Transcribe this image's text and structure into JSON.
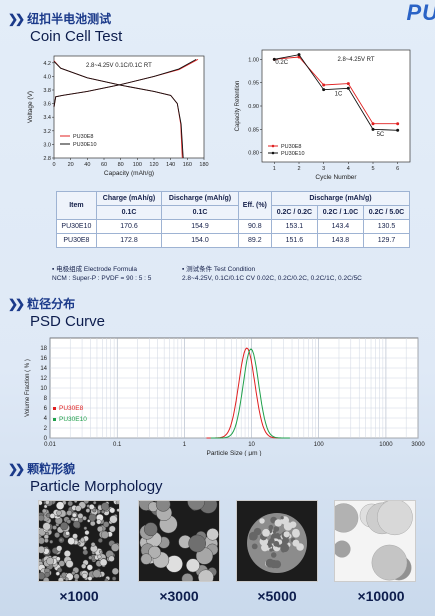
{
  "brand": "PU",
  "sections": {
    "coin": {
      "cn": "纽扣半电池测试",
      "en": "Coin Cell Test"
    },
    "psd": {
      "cn": "粒径分布",
      "en": "PSD Curve"
    },
    "morph": {
      "cn": "颗粒形貌",
      "en": "Particle Morphology"
    }
  },
  "chart_data": [
    {
      "type": "line",
      "title": "2.8~4.25V  0.1C/0.1C  RT",
      "xlabel": "Capacity (mAh/g)",
      "ylabel": "Voltage (V)",
      "xlim": [
        0,
        180
      ],
      "ylim": [
        2.8,
        4.3
      ],
      "xticks": [
        "0",
        "20",
        "40",
        "60",
        "80",
        "100",
        "120",
        "140",
        "160",
        "180"
      ],
      "yticks": [
        "2.8",
        "3.0",
        "3.2",
        "3.4",
        "3.6",
        "3.8",
        "4.0",
        "4.2"
      ],
      "legend": [
        "PU30E8",
        "PU30E10"
      ],
      "series": [
        {
          "name": "PU30E8",
          "color": "#e02020",
          "charge": [
            [
              0,
              3.55
            ],
            [
              2,
              3.7
            ],
            [
              10,
              3.72
            ],
            [
              40,
              3.78
            ],
            [
              80,
              3.88
            ],
            [
              120,
              4.0
            ],
            [
              150,
              4.1
            ],
            [
              172.8,
              4.25
            ]
          ],
          "discharge": [
            [
              0,
              4.23
            ],
            [
              8,
              4.12
            ],
            [
              40,
              3.98
            ],
            [
              80,
              3.87
            ],
            [
              120,
              3.78
            ],
            [
              140,
              3.72
            ],
            [
              148,
              3.6
            ],
            [
              152,
              3.3
            ],
            [
              154,
              2.8
            ]
          ]
        },
        {
          "name": "PU30E10",
          "color": "#111111",
          "charge": [
            [
              0,
              3.55
            ],
            [
              2,
              3.7
            ],
            [
              10,
              3.72
            ],
            [
              40,
              3.78
            ],
            [
              80,
              3.88
            ],
            [
              120,
              4.0
            ],
            [
              150,
              4.11
            ],
            [
              170.6,
              4.25
            ]
          ],
          "discharge": [
            [
              0,
              4.22
            ],
            [
              8,
              4.12
            ],
            [
              40,
              3.98
            ],
            [
              80,
              3.87
            ],
            [
              120,
              3.78
            ],
            [
              140,
              3.72
            ],
            [
              148,
              3.6
            ],
            [
              152.5,
              3.3
            ],
            [
              155,
              2.8
            ]
          ]
        }
      ]
    },
    {
      "type": "line",
      "title": "2.8~4.25V  RT",
      "xlabel": "Cycle Number",
      "ylabel": "Capacity Retention",
      "xlim": [
        0.5,
        6.5
      ],
      "ylim": [
        0.78,
        1.02
      ],
      "xticks": [
        "1",
        "2",
        "3",
        "4",
        "5",
        "6"
      ],
      "yticks": [
        "0.80",
        "0.85",
        "0.90",
        "0.95",
        "1.00"
      ],
      "annotations": [
        "0.2C",
        "1C",
        "5C"
      ],
      "legend": [
        "PU30E8",
        "PU30E10"
      ],
      "series": [
        {
          "name": "PU30E8",
          "color": "#e02020",
          "x": [
            1,
            2,
            3,
            4,
            5,
            6
          ],
          "values": [
            1.0,
            1.005,
            0.945,
            0.948,
            0.862,
            0.862
          ]
        },
        {
          "name": "PU30E10",
          "color": "#111111",
          "x": [
            1,
            2,
            3,
            4,
            5,
            6
          ],
          "values": [
            1.0,
            1.01,
            0.935,
            0.938,
            0.85,
            0.848
          ]
        }
      ]
    },
    {
      "type": "line",
      "xlabel": "Particle Size ( μm )",
      "ylabel": "Volume Fraction ( % )",
      "xscale": "log",
      "xlim": [
        0.01,
        3000
      ],
      "ylim": [
        0,
        20
      ],
      "xticks": [
        "0.01",
        "0.1",
        "1",
        "10",
        "100",
        "1000",
        "3000"
      ],
      "yticks": [
        "0",
        "2",
        "4",
        "6",
        "8",
        "10",
        "12",
        "14",
        "16",
        "18"
      ],
      "legend": [
        "PU30E8",
        "PU30E10"
      ],
      "series": [
        {
          "name": "PU30E8",
          "color": "#e02020",
          "peak_x": 8.5,
          "peak_y": 18.0,
          "sigma": 0.12
        },
        {
          "name": "PU30E10",
          "color": "#1fa04a",
          "peak_x": 9.8,
          "peak_y": 17.8,
          "sigma": 0.115
        }
      ]
    }
  ],
  "table": {
    "item": "Item",
    "charge": "Charge (mAh/g)",
    "discharge": "Discharge (mAh/g)",
    "eff": "Eff. (%)",
    "discharge2": "Discharge (mAh/g)",
    "sub": [
      "0.1C",
      "0.1C",
      "0.2C / 0.2C",
      "0.2C / 1.0C",
      "0.2C / 5.0C"
    ],
    "rows": [
      [
        "PU30E10",
        "170.6",
        "154.9",
        "90.8",
        "153.1",
        "143.4",
        "130.5"
      ],
      [
        "PU30E8",
        "172.8",
        "154.0",
        "89.2",
        "151.6",
        "143.8",
        "129.7"
      ]
    ]
  },
  "notes": {
    "formula_title": "▪ 电极组成 Electrode Formula",
    "formula": "NCM : Super-P : PVDF = 90 : 5 : 5",
    "cond_title": "▪ 测试条件 Test Condition",
    "cond": "2.8~4.25V, 0.1C/0.1C CV 0.02C, 0.2C/0.2C, 0.2C/1C, 0.2C/5C"
  },
  "morphology": [
    "×1000",
    "×3000",
    "×5000",
    "×10000"
  ]
}
